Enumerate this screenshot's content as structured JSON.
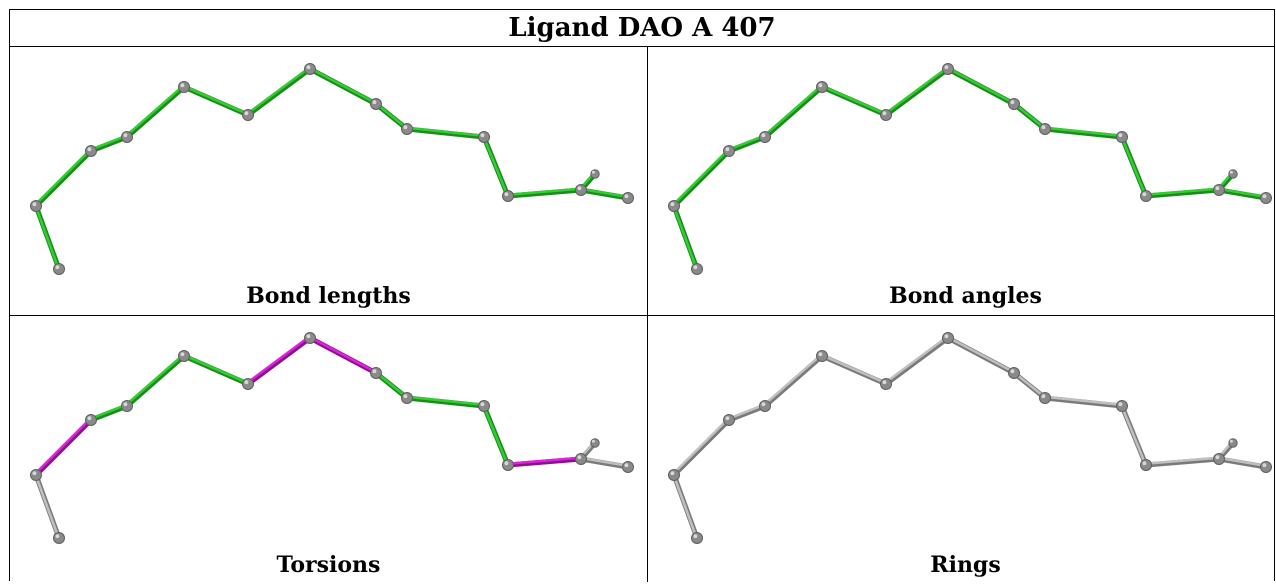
{
  "title": "Ligand DAO A 407",
  "colors": {
    "ok": "#33cc33",
    "ok_dark": "#1a8c1a",
    "outlier": "#e020e0",
    "outlier_dark": "#8c108c",
    "none": "#c0c0c0",
    "none_dark": "#7a7a7a",
    "atom": "#8a8a8a"
  },
  "panels": [
    {
      "label": "Bond lengths",
      "bond_status": [
        "ok",
        "ok",
        "ok",
        "ok",
        "ok",
        "ok",
        "ok",
        "ok",
        "ok",
        "ok",
        "ok",
        "ok",
        "ok",
        "ok"
      ]
    },
    {
      "label": "Bond angles",
      "bond_status": [
        "ok",
        "ok",
        "ok",
        "ok",
        "ok",
        "ok",
        "ok",
        "ok",
        "ok",
        "ok",
        "ok",
        "ok",
        "ok",
        "ok"
      ]
    },
    {
      "label": "Torsions",
      "bond_status": [
        "none",
        "outlier",
        "ok",
        "ok",
        "ok",
        "outlier",
        "outlier",
        "ok",
        "ok",
        "ok",
        "outlier",
        "none",
        "none",
        "none"
      ]
    },
    {
      "label": "Rings",
      "bond_status": [
        "none",
        "none",
        "none",
        "none",
        "none",
        "none",
        "none",
        "none",
        "none",
        "none",
        "none",
        "none",
        "none",
        "none"
      ]
    }
  ]
}
